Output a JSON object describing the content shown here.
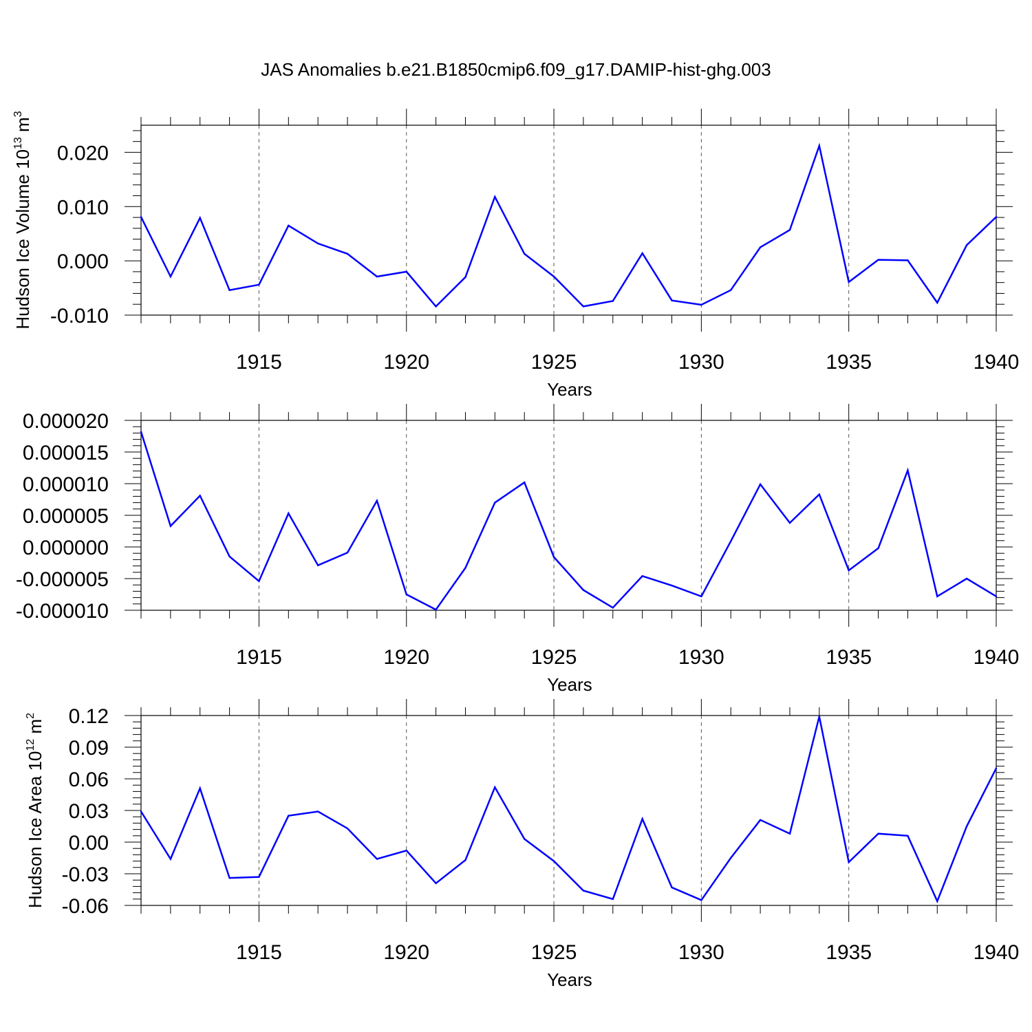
{
  "title": "JAS Anomalies b.e21.B1850cmip6.f09_g17.DAMIP-hist-ghg.003",
  "line_color": "#0000ff",
  "chart_data": [
    {
      "type": "line",
      "xlabel": "Years",
      "ylabel": {
        "text": "Hudson Ice Volume 10",
        "sup": "13",
        "unit": " m",
        "unit_sup": "3"
      },
      "xlim": [
        1911,
        1940
      ],
      "ylim": [
        -0.01,
        0.025
      ],
      "xticks": [
        "1915",
        "1920",
        "1925",
        "1930",
        "1935",
        "1940"
      ],
      "yticks": [
        "-0.010",
        "0.000",
        "0.010",
        "0.020"
      ],
      "x": [
        1911,
        1912,
        1913,
        1914,
        1915,
        1916,
        1917,
        1918,
        1919,
        1920,
        1921,
        1922,
        1923,
        1924,
        1925,
        1926,
        1927,
        1928,
        1929,
        1930,
        1931,
        1932,
        1933,
        1934,
        1935,
        1936,
        1937,
        1938,
        1939,
        1940
      ],
      "values": [
        0.0081,
        -0.0029,
        0.0079,
        -0.0054,
        -0.0044,
        0.0065,
        0.0032,
        0.0013,
        -0.0029,
        -0.002,
        -0.0084,
        -0.003,
        0.0118,
        0.0013,
        -0.0029,
        -0.0084,
        -0.0074,
        0.0014,
        -0.0073,
        -0.0081,
        -0.0054,
        0.0025,
        0.0057,
        0.0212,
        -0.0039,
        0.0002,
        0.0001,
        -0.0077,
        0.0029,
        0.0081
      ]
    },
    {
      "type": "line",
      "xlabel": "Years",
      "ylabel": null,
      "xlim": [
        1911,
        1940
      ],
      "ylim": [
        -1e-05,
        2e-05
      ],
      "xticks": [
        "1915",
        "1920",
        "1925",
        "1930",
        "1935",
        "1940"
      ],
      "yticks": [
        "-0.000010",
        "-0.000005",
        "0.000000",
        "0.000005",
        "0.000010",
        "0.000015",
        "0.000020"
      ],
      "x": [
        1911,
        1912,
        1913,
        1914,
        1915,
        1916,
        1917,
        1918,
        1919,
        1920,
        1921,
        1922,
        1923,
        1924,
        1925,
        1926,
        1927,
        1928,
        1929,
        1930,
        1931,
        1932,
        1933,
        1934,
        1935,
        1936,
        1937,
        1938,
        1939,
        1940
      ],
      "values": [
        1.82e-05,
        3.3e-06,
        8.1e-06,
        -1.5e-06,
        -5.4e-06,
        5.3e-06,
        -2.9e-06,
        -9e-07,
        7.3e-06,
        -7.5e-06,
        -9.9e-06,
        -3.3e-06,
        7e-06,
        1.02e-05,
        -1.6e-06,
        -6.8e-06,
        -9.6e-06,
        -4.6e-06,
        -6.1e-06,
        -7.8e-06,
        9e-07,
        9.9e-06,
        3.8e-06,
        8.3e-06,
        -3.7e-06,
        -2e-07,
        1.21e-05,
        -7.8e-06,
        -5e-06,
        -7.8e-06
      ]
    },
    {
      "type": "line",
      "xlabel": "Years",
      "ylabel": {
        "text": "Hudson Ice Area 10",
        "sup": "12",
        "unit": " m",
        "unit_sup": "2"
      },
      "xlim": [
        1911,
        1940
      ],
      "ylim": [
        -0.06,
        0.12
      ],
      "xticks": [
        "1915",
        "1920",
        "1925",
        "1930",
        "1935",
        "1940"
      ],
      "yticks": [
        "-0.06",
        "-0.03",
        "0.00",
        "0.03",
        "0.06",
        "0.09",
        "0.12"
      ],
      "x": [
        1911,
        1912,
        1913,
        1914,
        1915,
        1916,
        1917,
        1918,
        1919,
        1920,
        1921,
        1922,
        1923,
        1924,
        1925,
        1926,
        1927,
        1928,
        1929,
        1930,
        1931,
        1932,
        1933,
        1934,
        1935,
        1936,
        1937,
        1938,
        1939,
        1940
      ],
      "values": [
        0.029,
        -0.016,
        0.051,
        -0.034,
        -0.033,
        0.025,
        0.029,
        0.013,
        -0.016,
        -0.008,
        -0.039,
        -0.017,
        0.052,
        0.003,
        -0.018,
        -0.046,
        -0.054,
        0.022,
        -0.043,
        -0.055,
        -0.015,
        0.021,
        0.008,
        0.119,
        -0.019,
        0.008,
        0.006,
        -0.056,
        0.015,
        0.07
      ]
    }
  ]
}
